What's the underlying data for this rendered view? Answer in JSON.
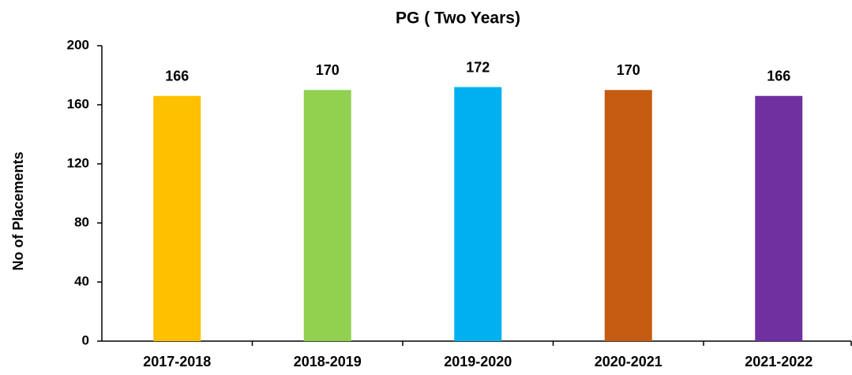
{
  "chart_data": {
    "type": "bar",
    "title": "PG ( Two Years)",
    "y_label": "No of Placements",
    "categories": [
      "2017-2018",
      "2018-2019",
      "2019-2020",
      "2020-2021",
      "2021-2022"
    ],
    "values": [
      166,
      170,
      172,
      170,
      166
    ],
    "colors": [
      "#FFC000",
      "#92D050",
      "#00B0F0",
      "#C55A11",
      "#7030A0"
    ],
    "ylim": [
      0,
      200
    ],
    "yticks": [
      0,
      40,
      80,
      120,
      160,
      200
    ],
    "grid": false
  }
}
